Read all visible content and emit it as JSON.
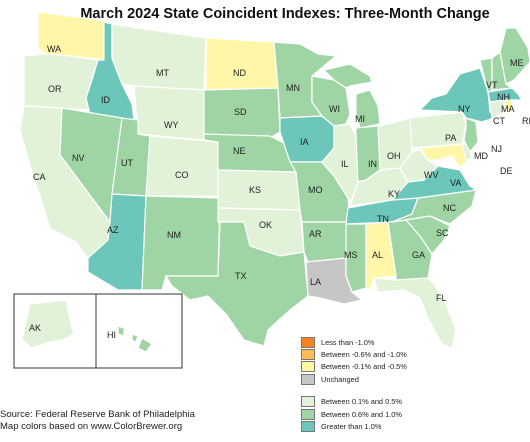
{
  "title": "March 2024 State Coincident Indexes: Three-Month Change",
  "colors": {
    "lt_neg1": "#f5841f",
    "neg06_neg10": "#fdbf55",
    "neg01_neg05": "#fff6a8",
    "unchanged": "#c6c6c6",
    "p01_p05": "#e2f2d8",
    "p06_p10": "#9fd5a5",
    "gt_p10": "#6cc6ba"
  },
  "legend": [
    {
      "label": "Less than -1.0%",
      "color_key": "lt_neg1"
    },
    {
      "label": "Between -0.6% and -1.0%",
      "color_key": "neg06_neg10"
    },
    {
      "label": "Between -0.1% and -0.5%",
      "color_key": "neg01_neg05"
    },
    {
      "label": "Unchanged",
      "color_key": "unchanged"
    },
    {
      "label": "Between 0.1% and 0.5%",
      "color_key": "p01_p05"
    },
    {
      "label": "Between 0.6% and 1.0%",
      "color_key": "p06_p10"
    },
    {
      "label": "Greater than 1.0%",
      "color_key": "gt_p10"
    }
  ],
  "states": [
    {
      "abbr": "WA",
      "category": "neg01_neg05"
    },
    {
      "abbr": "OR",
      "category": "p01_p05"
    },
    {
      "abbr": "CA",
      "category": "p01_p05"
    },
    {
      "abbr": "ID",
      "category": "gt_p10"
    },
    {
      "abbr": "NV",
      "category": "p06_p10"
    },
    {
      "abbr": "MT",
      "category": "p01_p05"
    },
    {
      "abbr": "WY",
      "category": "p01_p05"
    },
    {
      "abbr": "UT",
      "category": "p06_p10"
    },
    {
      "abbr": "AZ",
      "category": "gt_p10"
    },
    {
      "abbr": "CO",
      "category": "p01_p05"
    },
    {
      "abbr": "NM",
      "category": "p06_p10"
    },
    {
      "abbr": "ND",
      "category": "neg01_neg05"
    },
    {
      "abbr": "SD",
      "category": "p06_p10"
    },
    {
      "abbr": "NE",
      "category": "p06_p10"
    },
    {
      "abbr": "KS",
      "category": "p01_p05"
    },
    {
      "abbr": "OK",
      "category": "p01_p05"
    },
    {
      "abbr": "TX",
      "category": "p06_p10"
    },
    {
      "abbr": "MN",
      "category": "p06_p10"
    },
    {
      "abbr": "IA",
      "category": "gt_p10"
    },
    {
      "abbr": "MO",
      "category": "p06_p10"
    },
    {
      "abbr": "AR",
      "category": "p06_p10"
    },
    {
      "abbr": "LA",
      "category": "unchanged"
    },
    {
      "abbr": "WI",
      "category": "p06_p10"
    },
    {
      "abbr": "IL",
      "category": "p01_p05"
    },
    {
      "abbr": "MI",
      "category": "p06_p10"
    },
    {
      "abbr": "IN",
      "category": "p06_p10"
    },
    {
      "abbr": "OH",
      "category": "p01_p05"
    },
    {
      "abbr": "KY",
      "category": "p01_p05"
    },
    {
      "abbr": "TN",
      "category": "gt_p10"
    },
    {
      "abbr": "MS",
      "category": "p06_p10"
    },
    {
      "abbr": "AL",
      "category": "neg01_neg05"
    },
    {
      "abbr": "GA",
      "category": "p06_p10"
    },
    {
      "abbr": "FL",
      "category": "p01_p05"
    },
    {
      "abbr": "SC",
      "category": "p06_p10"
    },
    {
      "abbr": "NC",
      "category": "p06_p10"
    },
    {
      "abbr": "VA",
      "category": "gt_p10"
    },
    {
      "abbr": "WV",
      "category": "p01_p05"
    },
    {
      "abbr": "PA",
      "category": "p01_p05"
    },
    {
      "abbr": "NY",
      "category": "gt_p10"
    },
    {
      "abbr": "NJ",
      "category": "p06_p10"
    },
    {
      "abbr": "DE",
      "category": "p01_p05"
    },
    {
      "abbr": "MD",
      "category": "neg01_neg05"
    },
    {
      "abbr": "CT",
      "category": "p01_p05"
    },
    {
      "abbr": "RI",
      "category": "neg01_neg05"
    },
    {
      "abbr": "MA",
      "category": "gt_p10"
    },
    {
      "abbr": "VT",
      "category": "p06_p10"
    },
    {
      "abbr": "NH",
      "category": "p06_p10"
    },
    {
      "abbr": "ME",
      "category": "p06_p10"
    },
    {
      "abbr": "AK",
      "category": "p01_p05"
    },
    {
      "abbr": "HI",
      "category": "p06_p10"
    }
  ],
  "source_lines": [
    "Source: Federal Reserve Bank of Philadelphia",
    "Map colors based on www.ColorBrewer.org"
  ]
}
